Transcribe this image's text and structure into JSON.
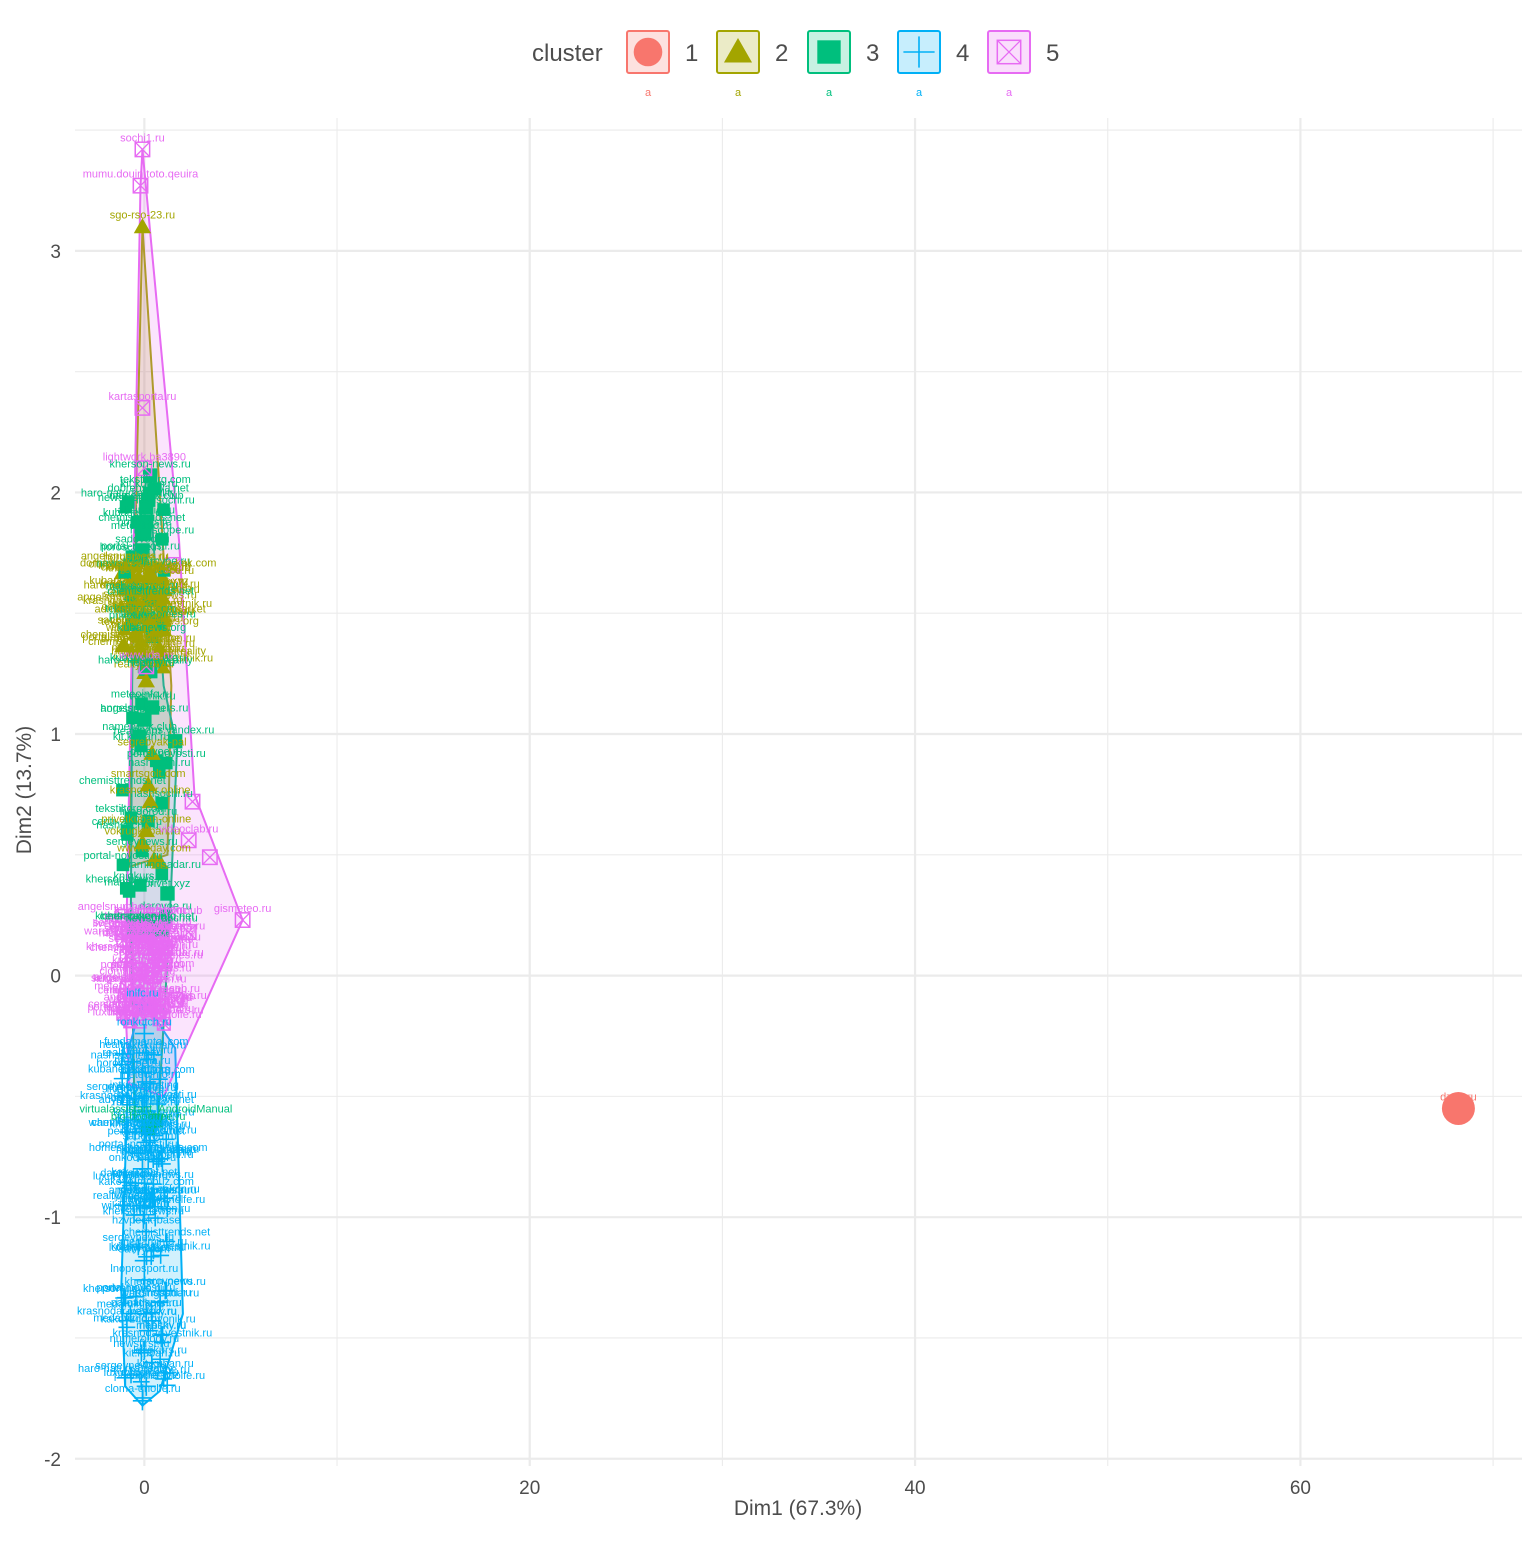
{
  "chart_data": {
    "type": "scatter",
    "title": "",
    "xlabel": "Dim1 (67.3%)",
    "ylabel": "Dim2 (13.7%)",
    "xlim": [
      -3.6,
      71.5
    ],
    "ylim": [
      -2.03,
      3.55
    ],
    "x_ticks": [
      0,
      20,
      40,
      60
    ],
    "y_ticks": [
      -2,
      -1,
      0,
      1,
      2,
      3
    ],
    "grid": true,
    "legend": {
      "title": "cluster",
      "position": "top",
      "keys": [
        "1",
        "2",
        "3",
        "4",
        "5"
      ],
      "text_key": "a"
    },
    "series": [
      {
        "name": "1",
        "color": "#F8766D",
        "marker": "circle",
        "points": [
          {
            "x": 68.2,
            "y": -0.55,
            "label": "dzen.ru"
          }
        ],
        "hull": []
      },
      {
        "name": "2",
        "color": "#A3A500",
        "marker": "triangle",
        "points": [
          {
            "x": -0.1,
            "y": 3.1,
            "label": "sgo-rso-23.ru"
          },
          {
            "x": 0.2,
            "y": 1.66,
            "label": "domashniy-krasivo-kak.com"
          },
          {
            "x": 0.5,
            "y": 1.58,
            "label": "wallpaper_7"
          },
          {
            "x": 0.3,
            "y": 1.47,
            "label": "admkubana-tur-market"
          },
          {
            "x": 0.6,
            "y": 1.43,
            "label": "widget"
          },
          {
            "x": -0.2,
            "y": 1.35,
            "label": "turbo-stat-online"
          },
          {
            "x": 0.1,
            "y": 1.22,
            "label": ""
          },
          {
            "x": 0.4,
            "y": 0.92,
            "label": "segrebyak-pal"
          },
          {
            "x": 0.2,
            "y": 0.79,
            "label": "smartsgolt.com"
          },
          {
            "x": 0.3,
            "y": 0.72,
            "label": "krasnodar.online"
          },
          {
            "x": 0.1,
            "y": 0.6,
            "label": "privetkuban-online"
          },
          {
            "x": -0.1,
            "y": 0.55,
            "label": "vokrugkuban.ru"
          },
          {
            "x": 0.5,
            "y": 0.48,
            "label": "wwwtoday.com"
          },
          {
            "x": 0.8,
            "y": 0.47,
            "label": ""
          }
        ],
        "hull": [
          [
            -0.1,
            3.1
          ],
          [
            0.8,
            2.0
          ],
          [
            1.4,
            1.2
          ],
          [
            1.2,
            0.5
          ],
          [
            -0.8,
            0.45
          ],
          [
            -0.6,
            1.4
          ]
        ]
      },
      {
        "name": "3",
        "color": "#00BF7D",
        "marker": "square",
        "points": [
          {
            "x": 0.3,
            "y": 2.07,
            "label": "kherson-news.ru"
          },
          {
            "x": 0.2,
            "y": 1.97,
            "label": "dobrenskaya.net"
          },
          {
            "x": 0.1,
            "y": 1.94,
            "label": "namebook.club"
          },
          {
            "x": 0.1,
            "y": 1.88,
            "label": "altairadio.ru"
          },
          {
            "x": 0.0,
            "y": 1.83,
            "label": "hotdog.site"
          },
          {
            "x": -0.1,
            "y": 1.76,
            "label": "sadovod.ru"
          },
          {
            "x": -0.2,
            "y": 1.73,
            "label": "portal-novosti.ru"
          },
          {
            "x": 0.4,
            "y": 1.11,
            "label": "vestnik.ru"
          },
          {
            "x": 0.0,
            "y": 1.06,
            "label": "angelsnumbers.ru"
          },
          {
            "x": 1.6,
            "y": 0.97,
            "label": "maps.yandex.ru"
          },
          {
            "x": 1.2,
            "y": 0.34,
            "label": ""
          },
          {
            "x": 0.2,
            "y": 0.2,
            "label": "chernomor-info.net"
          },
          {
            "x": 0.9,
            "y": 0.19,
            "label": "newsbranch.ru"
          },
          {
            "x": -0.5,
            "y": 0.2,
            "label": "centr-zakon.ru"
          },
          {
            "x": 0.6,
            "y": -0.6,
            "label": "virtualassistant_AndroidManual"
          },
          {
            "x": 0.2,
            "y": -0.63,
            "label": "big-boobtree.ru"
          }
        ],
        "hull": [
          [
            0.2,
            2.1
          ],
          [
            1.0,
            1.2
          ],
          [
            1.7,
            0.95
          ],
          [
            1.3,
            0.2
          ],
          [
            0.7,
            -0.6
          ],
          [
            -0.5,
            -0.6
          ],
          [
            -0.7,
            0.25
          ],
          [
            -0.6,
            1.7
          ]
        ]
      },
      {
        "name": "4",
        "color": "#00B0F6",
        "marker": "plus",
        "points": [
          {
            "x": -0.1,
            "y": -0.12,
            "label": "inlfc.ru"
          },
          {
            "x": 0.0,
            "y": -0.24,
            "label": "ronkutch.ru"
          },
          {
            "x": 0.1,
            "y": -0.32,
            "label": "fundamental.com"
          },
          {
            "x": -0.1,
            "y": -0.4,
            "label": "menerna.ru"
          },
          {
            "x": 0.1,
            "y": -0.44,
            "label": "blokf1988"
          },
          {
            "x": 0.0,
            "y": -0.5,
            "label": "intrigue.dating"
          },
          {
            "x": 0.1,
            "y": -0.56,
            "label": "adygheya-news.net"
          },
          {
            "x": 0.0,
            "y": -0.65,
            "label": "bankiros.ru"
          },
          {
            "x": 0.1,
            "y": -0.69,
            "label": "penza-news.net"
          },
          {
            "x": 0.2,
            "y": -0.76,
            "label": "homeschooling-tips.com"
          },
          {
            "x": -0.1,
            "y": -0.8,
            "label": "onkocentre.ru"
          },
          {
            "x": 0.0,
            "y": -0.86,
            "label": "kak-uznat.net"
          },
          {
            "x": 0.1,
            "y": -0.9,
            "label": "kakoye-mobuz.com"
          },
          {
            "x": 0.0,
            "y": -0.99,
            "label": "meylina.ru"
          },
          {
            "x": 0.1,
            "y": -1.06,
            "label": "hzvpeek-base"
          },
          {
            "x": 0.0,
            "y": -1.18,
            "label": "savvy.com"
          },
          {
            "x": 0.0,
            "y": -1.26,
            "label": "lnoprosport.ru"
          },
          {
            "x": 0.1,
            "y": -1.4,
            "label": "parnatlsport.ru"
          },
          {
            "x": 0.2,
            "y": -1.47,
            "label": "kakoyzdorovonik.ru"
          },
          {
            "x": 0.0,
            "y": -1.55,
            "label": "numerology.ru"
          },
          {
            "x": 0.1,
            "y": -1.7,
            "label": "pheapher.wiz"
          },
          {
            "x": -0.1,
            "y": -1.76,
            "label": ""
          }
        ],
        "hull": [
          [
            -0.1,
            -0.1
          ],
          [
            1.6,
            -0.3
          ],
          [
            2.0,
            -1.4
          ],
          [
            0.8,
            -1.72
          ],
          [
            -0.1,
            -1.78
          ],
          [
            -1.0,
            -1.7
          ],
          [
            -1.2,
            -1.3
          ],
          [
            -0.8,
            -0.3
          ]
        ]
      },
      {
        "name": "5",
        "color": "#E76BF3",
        "marker": "square-cross",
        "points": [
          {
            "x": -0.1,
            "y": 3.42,
            "label": "sochi1.ru"
          },
          {
            "x": -0.2,
            "y": 3.27,
            "label": "mumu.douin.toto.qeuira"
          },
          {
            "x": -0.1,
            "y": 2.35,
            "label": "kartasporta.ru"
          },
          {
            "x": 0.0,
            "y": 2.1,
            "label": "lightwork.ba3890"
          },
          {
            "x": 1.5,
            "y": 1.7,
            "label": ""
          },
          {
            "x": 0.1,
            "y": 1.28,
            "label": "www.ida.ru"
          },
          {
            "x": 2.5,
            "y": 0.72,
            "label": ""
          },
          {
            "x": 2.3,
            "y": 0.56,
            "label": "videoclab.ru"
          },
          {
            "x": 3.4,
            "y": 0.49,
            "label": ""
          },
          {
            "x": 5.1,
            "y": 0.23,
            "label": "gismeteo.ru"
          },
          {
            "x": 2.3,
            "y": 0.18,
            "label": ""
          },
          {
            "x": 0.5,
            "y": 0.0,
            "label": ""
          },
          {
            "x": 1.6,
            "y": -0.1,
            "label": "rbc-sob.ru"
          }
        ],
        "hull": [
          [
            -0.1,
            3.42
          ],
          [
            1.8,
            1.8
          ],
          [
            2.6,
            0.75
          ],
          [
            5.1,
            0.23
          ],
          [
            1.0,
            -0.5
          ],
          [
            -0.8,
            -0.45
          ],
          [
            -1.0,
            -0.1
          ],
          [
            -0.2,
            3.27
          ]
        ]
      }
    ],
    "filler_labels": [
      "kherson-news.ru",
      "namebook.club",
      "portal-novosti.ru",
      "cloma-dnolfe.ru",
      "sadovod.ru",
      "kit.kuban.ru",
      "angelsnumbers.ru",
      "knigkurs.ru",
      "mapsky.ru",
      "warningsadar.ru",
      "krasnodar-vestnik.ru",
      "serezhkafon.ru",
      "privet.xyz",
      "medaminfo.ru",
      "healthy.ru",
      "haro-naturka.reality",
      "chemisttrends.net",
      "luxuryhomes.ru",
      "centr-zakon.ru",
      "sergeynews.ru",
      "nashsochi.ru",
      "kubanews.org",
      "darovoe.ru",
      "tekstiltorg.com",
      "newsfirst.ru",
      "wiki-kuban.ru",
      "livegorod.ru",
      "realtyplus.ru",
      "meteoinfo.ru",
      "horoscope.ru"
    ]
  }
}
